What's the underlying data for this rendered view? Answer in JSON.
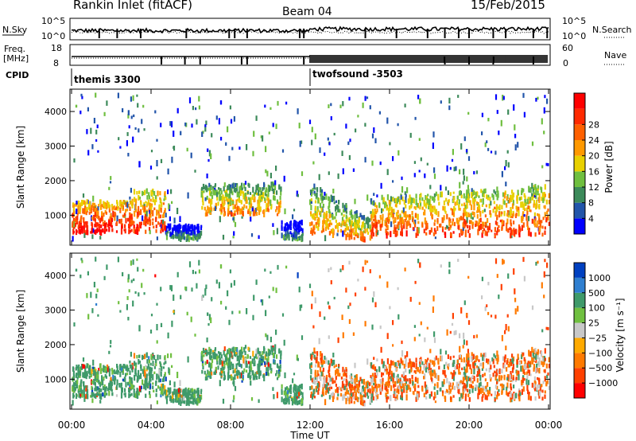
{
  "header": {
    "station": "Rankin Inlet (fitACF)",
    "beam": "Beam 04",
    "date": "15/Feb/2015"
  },
  "summary_panel": {
    "nsky_label": "N.Sky",
    "nsky_ticks": [
      "10^5",
      "10^0"
    ],
    "nsearch_label": "N.Search",
    "nsearch_ticks": [
      "10^5",
      "10^0"
    ],
    "freq_label_line1": "Freq.",
    "freq_label_line2": "[MHz]",
    "freq_ticks": [
      "18",
      "8"
    ],
    "nave_label": "Nave",
    "nave_ticks": [
      "60",
      "0"
    ],
    "cpid_label": "CPID",
    "cpid_segments": [
      "themis 3300",
      "twofsound -3503"
    ]
  },
  "chart_data": [
    {
      "type": "heatmap",
      "title": "",
      "xlabel": "",
      "ylabel": "Slant Range [km]",
      "xlim_hours_ut": [
        0,
        24
      ],
      "ylim_km": [
        180,
        4600
      ],
      "yticks": [
        "1000",
        "2000",
        "3000",
        "4000"
      ],
      "colorbar": {
        "label": "Power [dB]",
        "ticks": [
          "4",
          "8",
          "12",
          "16",
          "20",
          "24",
          "28"
        ],
        "colors": [
          "#0000ff",
          "#2255aa",
          "#3c8a5a",
          "#6fbf3f",
          "#e8d000",
          "#ff9900",
          "#ff6000",
          "#ff2a00",
          "#ff0000"
        ]
      }
    },
    {
      "type": "heatmap",
      "title": "",
      "xlabel": "Time UT",
      "ylabel": "Slant Range [km]",
      "xlim_hours_ut": [
        0,
        24
      ],
      "ylim_km": [
        180,
        4600
      ],
      "xticks": [
        "00:00",
        "04:00",
        "08:00",
        "12:00",
        "16:00",
        "20:00",
        "00:00"
      ],
      "yticks": [
        "1000",
        "2000",
        "3000",
        "4000"
      ],
      "colorbar": {
        "label": "Velocity [m s⁻¹]",
        "ticks": [
          "1000",
          "500",
          "100",
          "25",
          "−25",
          "−100",
          "−500",
          "−1000"
        ],
        "colors": [
          "#0040c0",
          "#2f7fd0",
          "#3f9a6a",
          "#70c040",
          "#c8c8c8",
          "#ffaa00",
          "#ff7a00",
          "#ff4000",
          "#ff0000"
        ]
      }
    }
  ]
}
